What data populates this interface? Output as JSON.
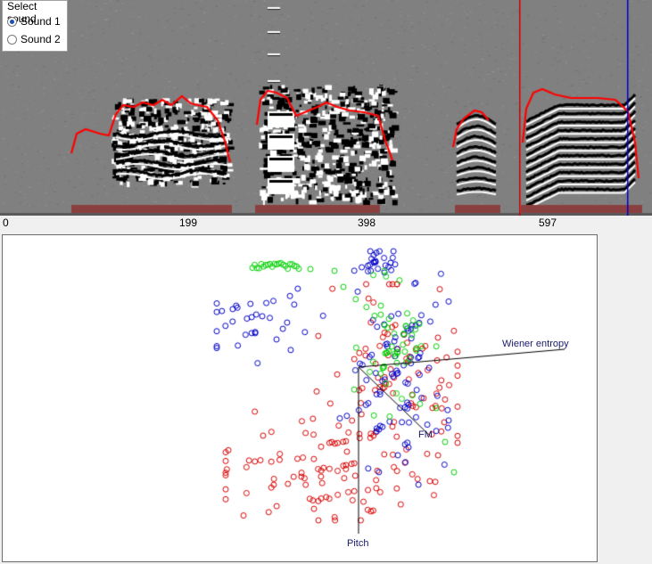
{
  "sound_selector": {
    "title": "Select sound",
    "options": [
      {
        "label": "Sound 1",
        "selected": true
      },
      {
        "label": "Sound 2",
        "selected": false
      }
    ]
  },
  "time_axis": {
    "ticks": [
      "0",
      "199",
      "398",
      "597"
    ]
  },
  "scatter_view": {
    "axes": {
      "wiener_entropy": "Wiener entropy",
      "fm": "FM",
      "pitch": "Pitch"
    }
  },
  "colors": {
    "spectrogram_bg": "#808080",
    "pitch_trace": "#ff0000",
    "segment_bar": "#8b4040",
    "cursor_start": "#d00000",
    "cursor_end": "#0000d0",
    "series_red": "#d80000",
    "series_blue": "#0000c8",
    "series_green": "#00d000",
    "axis_line": "#000000"
  }
}
